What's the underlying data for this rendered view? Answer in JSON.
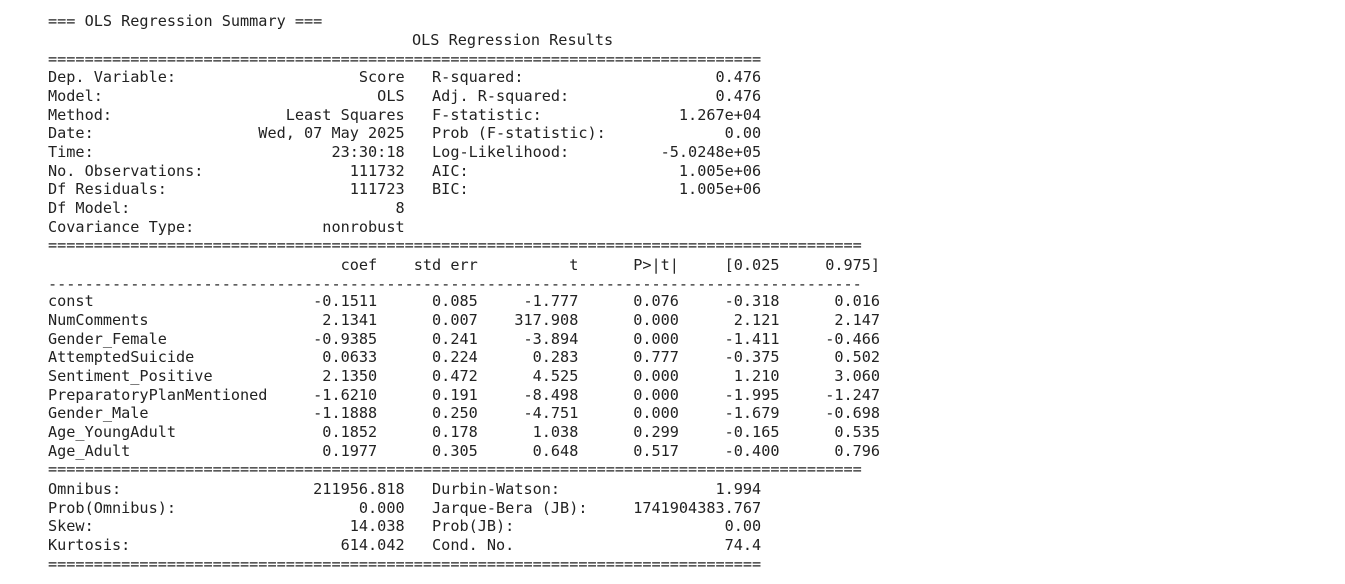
{
  "header_line": "=== OLS Regression Summary ===",
  "table_title": "OLS Regression Results",
  "sep_short": "==============================================================================",
  "sep_long": "=========================================================================================",
  "dash_long": "-----------------------------------------------------------------------------------------",
  "model_info": [
    {
      "label": "Dep. Variable:",
      "value": "Score",
      "stat_label": "R-squared:",
      "stat_value": "0.476"
    },
    {
      "label": "Model:",
      "value": "OLS",
      "stat_label": "Adj. R-squared:",
      "stat_value": "0.476"
    },
    {
      "label": "Method:",
      "value": "Least Squares",
      "stat_label": "F-statistic:",
      "stat_value": "1.267e+04"
    },
    {
      "label": "Date:",
      "value": "Wed, 07 May 2025",
      "stat_label": "Prob (F-statistic):",
      "stat_value": "0.00"
    },
    {
      "label": "Time:",
      "value": "23:30:18",
      "stat_label": "Log-Likelihood:",
      "stat_value": "-5.0248e+05"
    },
    {
      "label": "No. Observations:",
      "value": "111732",
      "stat_label": "AIC:",
      "stat_value": "1.005e+06"
    },
    {
      "label": "Df Residuals:",
      "value": "111723",
      "stat_label": "BIC:",
      "stat_value": "1.005e+06"
    },
    {
      "label": "Df Model:",
      "value": "8",
      "stat_label": "",
      "stat_value": ""
    },
    {
      "label": "Covariance Type:",
      "value": "nonrobust",
      "stat_label": "",
      "stat_value": ""
    }
  ],
  "coef_header": [
    "coef",
    "std err",
    "t",
    "P>|t|",
    "[0.025",
    "0.975]"
  ],
  "coef_rows": [
    [
      "const",
      "-0.1511",
      "0.085",
      "-1.777",
      "0.076",
      "-0.318",
      "0.016"
    ],
    [
      "NumComments",
      "2.1341",
      "0.007",
      "317.908",
      "0.000",
      "2.121",
      "2.147"
    ],
    [
      "Gender_Female",
      "-0.9385",
      "0.241",
      "-3.894",
      "0.000",
      "-1.411",
      "-0.466"
    ],
    [
      "AttemptedSuicide",
      "0.0633",
      "0.224",
      "0.283",
      "0.777",
      "-0.375",
      "0.502"
    ],
    [
      "Sentiment_Positive",
      "2.1350",
      "0.472",
      "4.525",
      "0.000",
      "1.210",
      "3.060"
    ],
    [
      "PreparatoryPlanMentioned",
      "-1.6210",
      "0.191",
      "-8.498",
      "0.000",
      "-1.995",
      "-1.247"
    ],
    [
      "Gender_Male",
      "-1.1888",
      "0.250",
      "-4.751",
      "0.000",
      "-1.679",
      "-0.698"
    ],
    [
      "Age_YoungAdult",
      "0.1852",
      "0.178",
      "1.038",
      "0.299",
      "-0.165",
      "0.535"
    ],
    [
      "Age_Adult",
      "0.1977",
      "0.305",
      "0.648",
      "0.517",
      "-0.400",
      "0.796"
    ]
  ],
  "diagnostics": [
    {
      "label": "Omnibus:",
      "value": "211956.818",
      "stat_label": "Durbin-Watson:",
      "stat_value": "1.994"
    },
    {
      "label": "Prob(Omnibus):",
      "value": "0.000",
      "stat_label": "Jarque-Bera (JB):",
      "stat_value": "1741904383.767"
    },
    {
      "label": "Skew:",
      "value": "14.038",
      "stat_label": "Prob(JB):",
      "stat_value": "0.00"
    },
    {
      "label": "Kurtosis:",
      "value": "614.042",
      "stat_label": "Cond. No.",
      "stat_value": "74.4"
    }
  ]
}
